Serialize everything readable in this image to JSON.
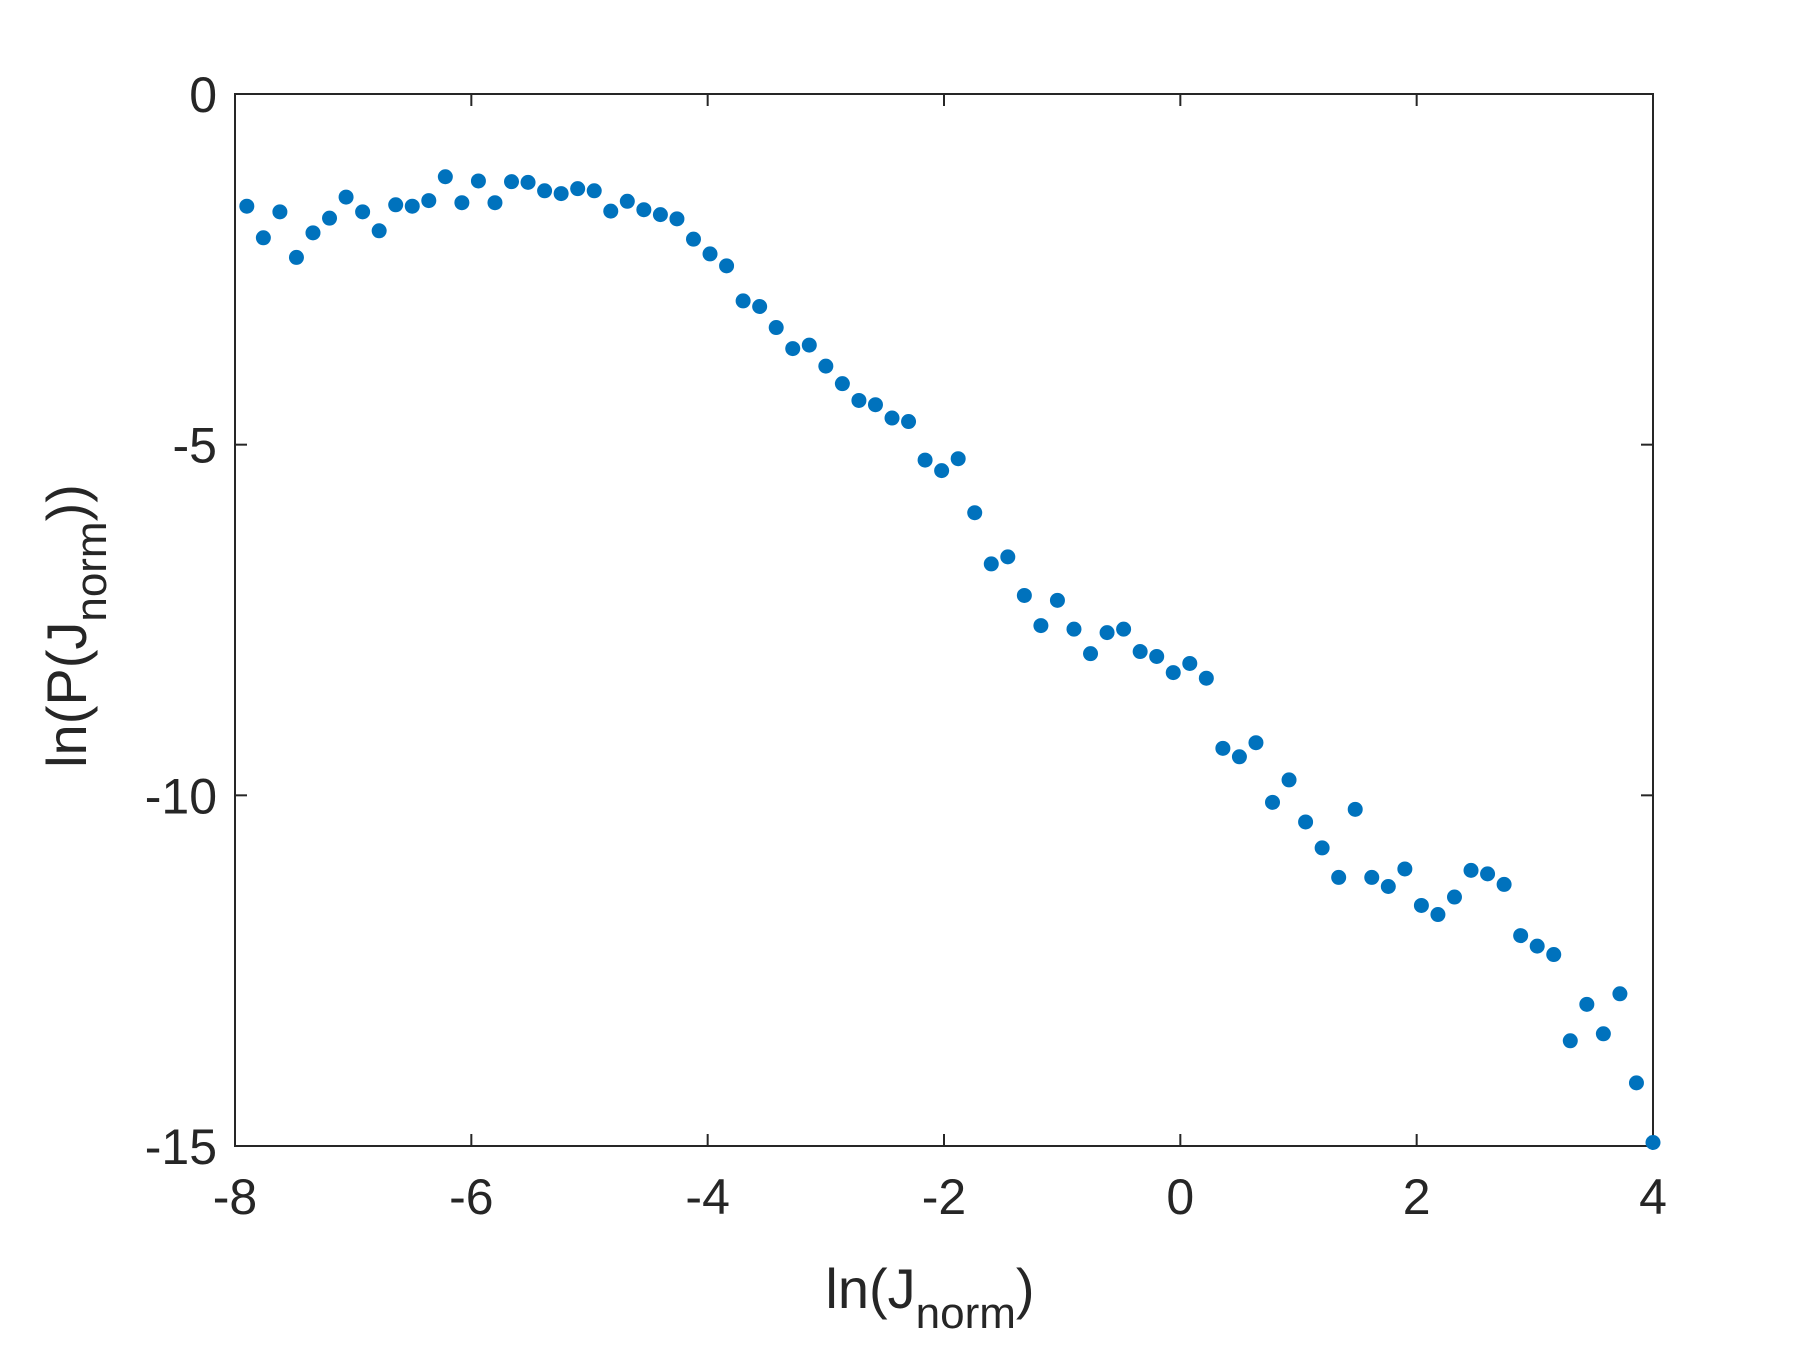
{
  "chart_data": {
    "type": "scatter",
    "title": "",
    "xlabel": {
      "prefix": "ln(J",
      "sub": "norm",
      "suffix": ")"
    },
    "ylabel": {
      "prefix": "ln(P(J",
      "sub": "norm",
      "suffix": "))"
    },
    "xlim": [
      -8,
      4
    ],
    "ylim": [
      -15,
      0
    ],
    "xticks": [
      -8,
      -6,
      -4,
      -2,
      0,
      2,
      4
    ],
    "yticks": [
      0,
      -5,
      -10,
      -15
    ],
    "xtick_labels": [
      "-8",
      "-6",
      "-4",
      "-2",
      "0",
      "2",
      "4"
    ],
    "ytick_labels": [
      "0",
      "-5",
      "-10",
      "-15"
    ],
    "grid": false,
    "marker_color": "#0072BD",
    "series": [
      {
        "x": [
          -7.9,
          -7.76,
          -7.62,
          -7.48,
          -7.34,
          -7.2,
          -7.06,
          -6.92,
          -6.78,
          -6.64,
          -6.5,
          -6.36,
          -6.22,
          -6.08,
          -5.94,
          -5.8,
          -5.66,
          -5.52,
          -5.38,
          -5.24,
          -5.1,
          -4.96,
          -4.82,
          -4.68,
          -4.54,
          -4.4,
          -4.26,
          -4.12,
          -3.98,
          -3.84,
          -3.7,
          -3.56,
          -3.42,
          -3.28,
          -3.14,
          -3.0,
          -2.86,
          -2.72,
          -2.58,
          -2.44,
          -2.3,
          -2.16,
          -2.02,
          -1.88,
          -1.74,
          -1.6,
          -1.46,
          -1.32,
          -1.18,
          -1.04,
          -0.9,
          -0.76,
          -0.62,
          -0.48,
          -0.34,
          -0.2,
          -0.06,
          0.08,
          0.22,
          0.36,
          0.5,
          0.64,
          0.78,
          0.92,
          1.06,
          1.2,
          1.34,
          1.48,
          1.62,
          1.76,
          1.9,
          2.04,
          2.18,
          2.32,
          2.46,
          2.6,
          2.74,
          2.88,
          3.02,
          3.16,
          3.3,
          3.44,
          3.58,
          3.72,
          3.86,
          4.0
        ],
        "y": [
          -1.6,
          -2.05,
          -1.68,
          -2.33,
          -1.98,
          -1.77,
          -1.47,
          -1.68,
          -1.95,
          -1.58,
          -1.6,
          -1.52,
          -1.18,
          -1.55,
          -1.24,
          -1.55,
          -1.25,
          -1.26,
          -1.38,
          -1.42,
          -1.35,
          -1.38,
          -1.67,
          -1.53,
          -1.65,
          -1.72,
          -1.78,
          -2.07,
          -2.28,
          -2.45,
          -2.95,
          -3.03,
          -3.33,
          -3.63,
          -3.58,
          -3.88,
          -4.13,
          -4.37,
          -4.43,
          -4.62,
          -4.67,
          -5.22,
          -5.37,
          -5.2,
          -5.97,
          -6.7,
          -6.6,
          -7.15,
          -7.58,
          -7.22,
          -7.63,
          -7.98,
          -7.68,
          -7.63,
          -7.95,
          -8.02,
          -8.25,
          -8.12,
          -8.33,
          -9.33,
          -9.45,
          -9.25,
          -10.1,
          -9.78,
          -10.38,
          -10.75,
          -11.17,
          -10.2,
          -11.17,
          -11.3,
          -11.05,
          -11.57,
          -11.7,
          -11.45,
          -11.07,
          -11.12,
          -11.27,
          -12.0,
          -12.15,
          -12.27,
          -13.5,
          -12.98,
          -13.4,
          -12.83,
          -14.1,
          -14.95
        ]
      }
    ]
  }
}
